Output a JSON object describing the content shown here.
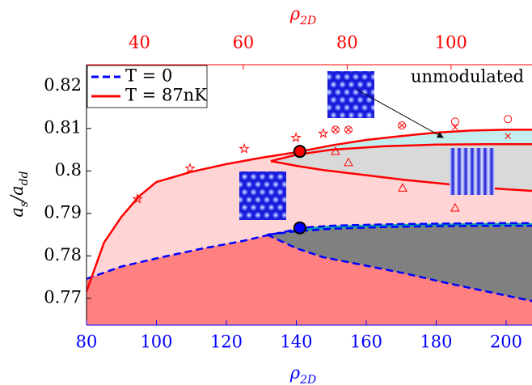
{
  "chart_data": {
    "type": "line",
    "xlabel": "ρ2D",
    "x2label": "ρ2D",
    "ylabel": "as/add",
    "xlim": [
      80,
      207.4
    ],
    "xticks": [
      80,
      100,
      120,
      140,
      160,
      180,
      200
    ],
    "x2lim": [
      29.8,
      115.6
    ],
    "x2ticks": [
      40,
      60,
      80,
      100
    ],
    "ylim": [
      0.7637,
      0.825
    ],
    "yticks": [
      0.77,
      0.78,
      0.79,
      0.8,
      0.81,
      0.82
    ],
    "axis_colors": {
      "x": "#0000ff",
      "x2": "#ff0000",
      "y": "#000000"
    },
    "series": [
      {
        "name": "T = 0",
        "color": "#0000ff",
        "style": "dashed",
        "x": [
          80,
          90,
          101.5,
          113,
          124.6,
          132,
          138.5,
          141,
          150,
          159.3,
          170,
          182,
          195,
          207.4
        ],
        "values": [
          0.7746,
          0.7775,
          0.7797,
          0.7817,
          0.7835,
          0.7849,
          0.786,
          0.7866,
          0.7871,
          0.7873,
          0.7875,
          0.7876,
          0.7877,
          0.7877
        ],
        "inner_upper": {
          "x": [
            131.6,
            140,
            150,
            165,
            180,
            195,
            207.4
          ],
          "values": [
            0.785,
            0.7858,
            0.7864,
            0.7868,
            0.787,
            0.7871,
            0.7871
          ]
        },
        "inner_lower": {
          "x": [
            131.6,
            140,
            147.7,
            160,
            170.9,
            182,
            194,
            207.4
          ],
          "values": [
            0.785,
            0.7818,
            0.7797,
            0.7777,
            0.7759,
            0.7738,
            0.7717,
            0.7694
          ]
        },
        "fill_below": "#ff8080",
        "fill_gap": "#00aaaa",
        "fill_lens": "#808080"
      },
      {
        "name": "T = 87nK",
        "color": "#ff0000",
        "style": "solid",
        "x": [
          80,
          85,
          90,
          95,
          100,
          110,
          120,
          130,
          140,
          150,
          160,
          170,
          180,
          190,
          200,
          207.4
        ],
        "values": [
          0.7716,
          0.7831,
          0.7892,
          0.794,
          0.7974,
          0.7998,
          0.8016,
          0.8031,
          0.8044,
          0.806,
          0.8073,
          0.8082,
          0.809,
          0.8095,
          0.8097,
          0.8097
        ],
        "inner_upper": {
          "x": [
            132.7,
            140,
            150,
            165,
            180,
            195,
            207.4
          ],
          "values": [
            0.8023,
            0.8038,
            0.805,
            0.8058,
            0.8062,
            0.8063,
            0.8063
          ]
        },
        "inner_lower": {
          "x": [
            132.7,
            140,
            147.7,
            160,
            170.9,
            182,
            194,
            207.4
          ],
          "values": [
            0.8023,
            0.8012,
            0.8002,
            0.799,
            0.7979,
            0.797,
            0.796,
            0.7953
          ]
        },
        "fill_below": "#ffd4d4",
        "fill_gap": "#c4eeee",
        "fill_lens": "#d9d9d9"
      }
    ],
    "markers": {
      "color": "#ff0000",
      "groups": [
        {
          "shape": "star",
          "x": [
            94.6,
            109.6,
            125.1,
            139.9,
            147.7
          ],
          "values": [
            0.7934,
            0.8006,
            0.8052,
            0.8078,
            0.8088
          ]
        },
        {
          "shape": "triangle",
          "x": [
            151.2,
            154.9,
            170.4,
            185.4
          ],
          "values": [
            0.8046,
            0.802,
            0.796,
            0.7913
          ]
        },
        {
          "shape": "circle",
          "x": [
            185.4,
            200.5
          ],
          "values": [
            0.8116,
            0.8122
          ]
        },
        {
          "shape": "cross",
          "x": [
            185.4,
            200.5
          ],
          "values": [
            0.8103,
            0.8082
          ]
        },
        {
          "shape": "circle-cross",
          "x": [
            151.2,
            154.9,
            170.2
          ],
          "values": [
            0.8097,
            0.8097,
            0.8107
          ]
        }
      ]
    },
    "points": [
      {
        "x": 141,
        "y": 0.8046,
        "color": "#ff0000"
      },
      {
        "x": 141,
        "y": 0.7866,
        "color": "#0000ff"
      }
    ],
    "annotation": "unmodulated"
  }
}
